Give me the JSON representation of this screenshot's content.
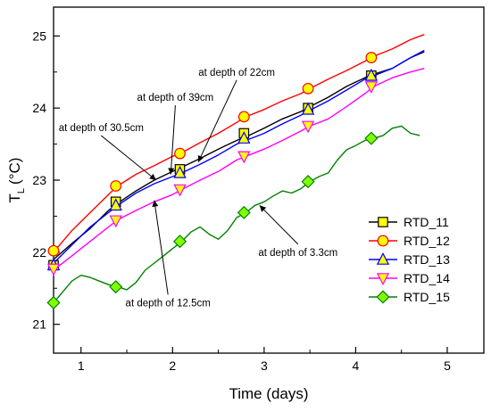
{
  "chart_data": {
    "type": "line",
    "xlabel": "Time (days)",
    "ylabel_main": "T",
    "ylabel_sub": "L",
    "ylabel_unit": "(°C)",
    "xlim": [
      0.7,
      5.4
    ],
    "ylim": [
      20.6,
      25.4
    ],
    "x_ticks": [
      1,
      2,
      3,
      4,
      5
    ],
    "y_ticks": [
      21,
      22,
      23,
      24,
      25
    ],
    "grid": false,
    "legend_position": "right-middle",
    "series": [
      {
        "name": "RTD_11",
        "color": "#000000",
        "marker": "square",
        "marker_fill": "#ffff00",
        "line": [
          [
            0.7,
            21.9
          ],
          [
            0.9,
            22.12
          ],
          [
            1.1,
            22.33
          ],
          [
            1.3,
            22.58
          ],
          [
            1.4,
            22.68
          ],
          [
            1.6,
            22.85
          ],
          [
            1.8,
            23.0
          ],
          [
            2.0,
            23.12
          ],
          [
            2.1,
            23.18
          ],
          [
            2.3,
            23.3
          ],
          [
            2.5,
            23.43
          ],
          [
            2.7,
            23.55
          ],
          [
            2.8,
            23.6
          ],
          [
            3.0,
            23.72
          ],
          [
            3.2,
            23.85
          ],
          [
            3.4,
            23.95
          ],
          [
            3.5,
            24.02
          ],
          [
            3.7,
            24.15
          ],
          [
            3.9,
            24.3
          ],
          [
            4.1,
            24.42
          ],
          [
            4.2,
            24.47
          ],
          [
            4.4,
            24.55
          ],
          [
            4.6,
            24.7
          ],
          [
            4.75,
            24.78
          ]
        ],
        "markers": [
          [
            0.7,
            21.82
          ],
          [
            1.38,
            22.7
          ],
          [
            2.08,
            23.15
          ],
          [
            2.78,
            23.65
          ],
          [
            3.48,
            24.0
          ],
          [
            4.17,
            24.45
          ]
        ]
      },
      {
        "name": "RTD_12",
        "color": "#ff0000",
        "marker": "circle",
        "marker_fill": "#ffff00",
        "line": [
          [
            0.7,
            22.0
          ],
          [
            0.9,
            22.3
          ],
          [
            1.1,
            22.55
          ],
          [
            1.3,
            22.8
          ],
          [
            1.4,
            22.92
          ],
          [
            1.6,
            23.08
          ],
          [
            1.8,
            23.2
          ],
          [
            2.0,
            23.33
          ],
          [
            2.1,
            23.38
          ],
          [
            2.3,
            23.52
          ],
          [
            2.5,
            23.65
          ],
          [
            2.7,
            23.8
          ],
          [
            2.8,
            23.88
          ],
          [
            3.0,
            23.98
          ],
          [
            3.2,
            24.1
          ],
          [
            3.4,
            24.2
          ],
          [
            3.5,
            24.27
          ],
          [
            3.7,
            24.4
          ],
          [
            3.9,
            24.52
          ],
          [
            4.1,
            24.65
          ],
          [
            4.2,
            24.72
          ],
          [
            4.4,
            24.82
          ],
          [
            4.6,
            24.95
          ],
          [
            4.75,
            25.02
          ]
        ],
        "markers": [
          [
            0.7,
            22.02
          ],
          [
            1.38,
            22.92
          ],
          [
            2.08,
            23.37
          ],
          [
            2.78,
            23.88
          ],
          [
            3.48,
            24.27
          ],
          [
            4.17,
            24.7
          ]
        ]
      },
      {
        "name": "RTD_13",
        "color": "#0000ff",
        "marker": "triangle-up",
        "marker_fill": "#ffff00",
        "line": [
          [
            0.7,
            21.85
          ],
          [
            0.9,
            22.1
          ],
          [
            1.1,
            22.35
          ],
          [
            1.3,
            22.55
          ],
          [
            1.4,
            22.65
          ],
          [
            1.6,
            22.82
          ],
          [
            1.8,
            22.95
          ],
          [
            2.0,
            23.05
          ],
          [
            2.1,
            23.1
          ],
          [
            2.3,
            23.22
          ],
          [
            2.5,
            23.35
          ],
          [
            2.7,
            23.5
          ],
          [
            2.8,
            23.55
          ],
          [
            3.0,
            23.65
          ],
          [
            3.2,
            23.78
          ],
          [
            3.4,
            23.9
          ],
          [
            3.5,
            23.97
          ],
          [
            3.7,
            24.1
          ],
          [
            3.9,
            24.25
          ],
          [
            4.1,
            24.4
          ],
          [
            4.2,
            24.45
          ],
          [
            4.4,
            24.55
          ],
          [
            4.6,
            24.7
          ],
          [
            4.75,
            24.8
          ]
        ],
        "markers": [
          [
            0.7,
            21.82
          ],
          [
            1.38,
            22.65
          ],
          [
            2.08,
            23.1
          ],
          [
            2.78,
            23.58
          ],
          [
            3.48,
            23.98
          ],
          [
            4.17,
            24.45
          ]
        ]
      },
      {
        "name": "RTD_14",
        "color": "#ff00ff",
        "marker": "triangle-down",
        "marker_fill": "#ffff00",
        "line": [
          [
            0.7,
            21.75
          ],
          [
            0.9,
            21.95
          ],
          [
            1.1,
            22.15
          ],
          [
            1.3,
            22.35
          ],
          [
            1.4,
            22.45
          ],
          [
            1.6,
            22.58
          ],
          [
            1.8,
            22.7
          ],
          [
            2.0,
            22.8
          ],
          [
            2.1,
            22.87
          ],
          [
            2.3,
            23.0
          ],
          [
            2.5,
            23.12
          ],
          [
            2.7,
            23.28
          ],
          [
            2.8,
            23.33
          ],
          [
            3.0,
            23.43
          ],
          [
            3.2,
            23.55
          ],
          [
            3.4,
            23.68
          ],
          [
            3.5,
            23.75
          ],
          [
            3.7,
            23.85
          ],
          [
            3.9,
            24.02
          ],
          [
            4.1,
            24.2
          ],
          [
            4.2,
            24.3
          ],
          [
            4.4,
            24.42
          ],
          [
            4.6,
            24.5
          ],
          [
            4.75,
            24.55
          ]
        ],
        "markers": [
          [
            0.7,
            21.77
          ],
          [
            1.38,
            22.44
          ],
          [
            2.08,
            22.87
          ],
          [
            2.78,
            23.33
          ],
          [
            3.48,
            23.75
          ],
          [
            4.17,
            24.3
          ]
        ]
      },
      {
        "name": "RTD_15",
        "color": "#008000",
        "marker": "diamond",
        "marker_fill": "#80ff00",
        "line": [
          [
            0.7,
            21.3
          ],
          [
            0.8,
            21.45
          ],
          [
            0.9,
            21.6
          ],
          [
            1.0,
            21.68
          ],
          [
            1.1,
            21.65
          ],
          [
            1.2,
            21.6
          ],
          [
            1.3,
            21.55
          ],
          [
            1.4,
            21.52
          ],
          [
            1.5,
            21.48
          ],
          [
            1.6,
            21.58
          ],
          [
            1.7,
            21.75
          ],
          [
            1.8,
            21.85
          ],
          [
            1.9,
            21.95
          ],
          [
            2.0,
            22.05
          ],
          [
            2.1,
            22.15
          ],
          [
            2.2,
            22.28
          ],
          [
            2.3,
            22.35
          ],
          [
            2.4,
            22.25
          ],
          [
            2.5,
            22.18
          ],
          [
            2.6,
            22.3
          ],
          [
            2.7,
            22.48
          ],
          [
            2.8,
            22.55
          ],
          [
            2.9,
            22.65
          ],
          [
            3.0,
            22.7
          ],
          [
            3.1,
            22.78
          ],
          [
            3.2,
            22.85
          ],
          [
            3.3,
            22.82
          ],
          [
            3.4,
            22.88
          ],
          [
            3.5,
            22.98
          ],
          [
            3.6,
            23.05
          ],
          [
            3.7,
            23.1
          ],
          [
            3.8,
            23.28
          ],
          [
            3.9,
            23.42
          ],
          [
            4.0,
            23.48
          ],
          [
            4.1,
            23.55
          ],
          [
            4.2,
            23.58
          ],
          [
            4.3,
            23.62
          ],
          [
            4.4,
            23.72
          ],
          [
            4.5,
            23.75
          ],
          [
            4.6,
            23.65
          ],
          [
            4.7,
            23.62
          ]
        ],
        "markers": [
          [
            0.7,
            21.3
          ],
          [
            1.38,
            21.52
          ],
          [
            2.08,
            22.15
          ],
          [
            2.78,
            22.55
          ],
          [
            3.48,
            22.98
          ],
          [
            4.17,
            23.58
          ]
        ]
      }
    ],
    "annotations": [
      {
        "text": "at depth of 22cm",
        "point": [
          2.28,
          23.25
        ],
        "label": [
          2.7,
          24.45
        ],
        "anchor": "middle"
      },
      {
        "text": "at depth of 39cm",
        "point": [
          1.98,
          23.08
        ],
        "label": [
          2.03,
          24.1
        ],
        "anchor": "middle"
      },
      {
        "text": "at depth of 30.5cm",
        "point": [
          1.82,
          23.0
        ],
        "label": [
          1.22,
          23.68
        ],
        "anchor": "middle"
      },
      {
        "text": "at depth of 3.3cm",
        "point": [
          2.95,
          22.65
        ],
        "label": [
          3.37,
          21.95
        ],
        "anchor": "middle"
      },
      {
        "text": "at depth of 12.5cm",
        "point": [
          1.8,
          22.72
        ],
        "label": [
          1.95,
          21.25
        ],
        "anchor": "middle"
      }
    ]
  }
}
